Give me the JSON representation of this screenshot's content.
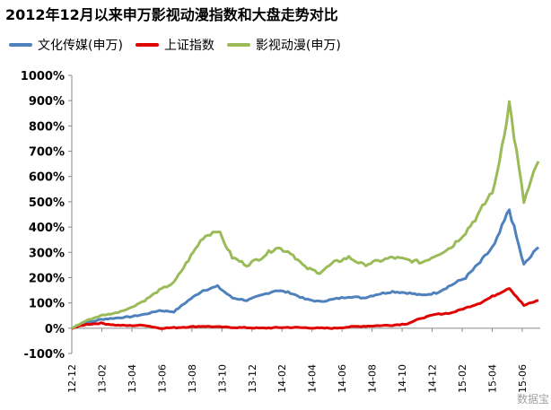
{
  "colors": {
    "series_wenhua": "#4f81bd",
    "series_shangzheng": "#e00000",
    "series_yingshi": "#9bbb59",
    "axis": "#888888"
  },
  "chart_data": {
    "type": "line",
    "title": "2012年12月以来申万影视动漫指数和大盘走势对比",
    "xlabel": "",
    "ylabel": "",
    "ylim": [
      -100,
      1000
    ],
    "y_ticks": [
      1000,
      900,
      800,
      700,
      600,
      500,
      400,
      300,
      200,
      100,
      0,
      -100
    ],
    "y_tick_labels": [
      "1000%",
      "900%",
      "800%",
      "700%",
      "600%",
      "500%",
      "400%",
      "300%",
      "200%",
      "100%",
      "0%",
      "-100%"
    ],
    "x_tick_labels": [
      "12-12",
      "13-02",
      "13-04",
      "13-06",
      "13-08",
      "13-10",
      "13-12",
      "14-02",
      "14-04",
      "14-06",
      "14-08",
      "14-10",
      "14-12",
      "15-02",
      "15-04",
      "15-06"
    ],
    "grid": false,
    "legend": "top-left",
    "series": [
      {
        "name": "文化传媒(申万)",
        "color": "#4f81bd",
        "x": [
          "12-12",
          "13-01",
          "13-02",
          "13-03",
          "13-04",
          "13-05",
          "13-06",
          "13-07",
          "13-08",
          "13-09",
          "13-10",
          "13-11",
          "13-12",
          "14-01",
          "14-02",
          "14-03",
          "14-04",
          "14-05",
          "14-06",
          "14-07",
          "14-08",
          "14-09",
          "14-10",
          "14-11",
          "14-12",
          "15-01",
          "15-02",
          "15-03",
          "15-04",
          "15-05",
          "15-06",
          "15-07",
          "15-08"
        ],
        "values": [
          0,
          20,
          35,
          40,
          45,
          55,
          70,
          65,
          110,
          150,
          165,
          120,
          110,
          130,
          150,
          140,
          115,
          105,
          115,
          125,
          120,
          135,
          145,
          140,
          130,
          140,
          170,
          200,
          260,
          330,
          470,
          250,
          320
        ]
      },
      {
        "name": "上证指数",
        "color": "#e00000",
        "x": [
          "12-12",
          "13-01",
          "13-02",
          "13-03",
          "13-04",
          "13-05",
          "13-06",
          "13-07",
          "13-08",
          "13-09",
          "13-10",
          "13-11",
          "13-12",
          "14-01",
          "14-02",
          "14-03",
          "14-04",
          "14-05",
          "14-06",
          "14-07",
          "14-08",
          "14-09",
          "14-10",
          "14-11",
          "14-12",
          "15-01",
          "15-02",
          "15-03",
          "15-04",
          "15-05",
          "15-06",
          "15-07",
          "15-08"
        ],
        "values": [
          0,
          15,
          20,
          12,
          10,
          12,
          0,
          2,
          5,
          8,
          5,
          3,
          2,
          0,
          2,
          3,
          2,
          0,
          0,
          5,
          8,
          10,
          12,
          18,
          40,
          55,
          60,
          80,
          100,
          130,
          160,
          90,
          110
        ]
      },
      {
        "name": "影视动漫(申万)",
        "color": "#9bbb59",
        "x": [
          "12-12",
          "13-01",
          "13-02",
          "13-03",
          "13-04",
          "13-05",
          "13-06",
          "13-07",
          "13-08",
          "13-09",
          "13-10",
          "13-11",
          "13-12",
          "14-01",
          "14-02",
          "14-03",
          "14-04",
          "14-05",
          "14-06",
          "14-07",
          "14-08",
          "14-09",
          "14-10",
          "14-11",
          "14-12",
          "15-01",
          "15-02",
          "15-03",
          "15-04",
          "15-05",
          "15-06",
          "15-07",
          "15-08"
        ],
        "values": [
          0,
          30,
          50,
          60,
          80,
          110,
          150,
          180,
          270,
          360,
          390,
          280,
          250,
          280,
          320,
          300,
          240,
          220,
          260,
          280,
          250,
          265,
          280,
          270,
          260,
          290,
          320,
          380,
          460,
          560,
          890,
          500,
          660
        ]
      }
    ],
    "watermark": "数据宝"
  }
}
